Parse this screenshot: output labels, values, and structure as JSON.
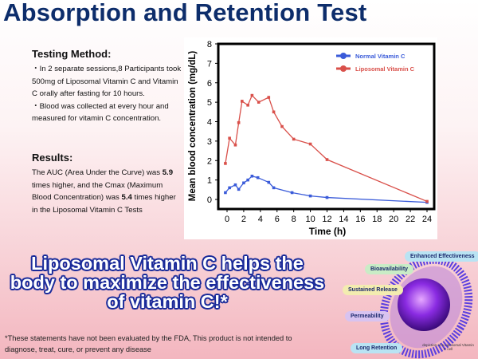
{
  "title": "Absorption and Retention Test",
  "method": {
    "heading": "Testing Method:",
    "lines": [
      "・In 2 separate sessions,8 Participants took 500mg of Liposomal Vitamin C and Vitamin C orally after fasting for 10 hours.",
      "・Blood was collected at every hour and measured for vitamin C concentration."
    ]
  },
  "results": {
    "heading": "Results:",
    "text_pre": "The AUC (Area Under the Curve) was ",
    "auc": "5.9",
    "text_mid": " times higher, and the Cmax (Maximum Blood Concentration) was ",
    "cmax": "5.4",
    "text_post": " times higher in the Liposomal Vitamin C Tests"
  },
  "slogan": "Liposomal Vitamin C helps the body to maximize the effectiveness of vitamin C!*",
  "disclaimer": "*These statements have not been evaluated by the FDA, This product is not intended to diagnose, treat, cure, or prevent any disease",
  "illustration": {
    "tags": [
      "Enhanced Effectiveness",
      "Bioavailability",
      "Sustained Release",
      "Permeability",
      "Long Retention"
    ],
    "caption": "depiction of a Liposomal Vitamin C cell"
  },
  "chart_data": {
    "type": "line",
    "title": "",
    "xlabel": "Time (h)",
    "ylabel": "Mean blood concentration (mg/dL)",
    "xlim": [
      -0.5,
      24.5
    ],
    "ylim": [
      -0.5,
      8
    ],
    "xticks": [
      0,
      2,
      4,
      6,
      8,
      10,
      12,
      14,
      16,
      18,
      20,
      22,
      24
    ],
    "yticks": [
      0,
      1,
      2,
      3,
      4,
      5,
      6,
      7,
      8
    ],
    "legend_position": "top-right",
    "series": [
      {
        "name": "Normal Vitamin C",
        "color": "#3a5bd9",
        "x": [
          -0.2,
          0.3,
          1,
          1.4,
          2,
          2.5,
          3,
          3.7,
          5,
          5.6,
          7.8,
          10,
          12,
          24
        ],
        "y": [
          0.35,
          0.6,
          0.75,
          0.52,
          0.85,
          1.0,
          1.2,
          1.12,
          0.88,
          0.6,
          0.35,
          0.18,
          0.1,
          -0.15
        ]
      },
      {
        "name": "Liposomal Vitamin C",
        "color": "#d9504a",
        "x": [
          -0.2,
          0.3,
          1,
          1.4,
          1.8,
          2.5,
          3,
          3.8,
          5,
          5.6,
          6.6,
          8,
          10,
          12,
          24
        ],
        "y": [
          1.85,
          3.15,
          2.8,
          3.95,
          5.05,
          4.85,
          5.35,
          5.0,
          5.25,
          4.5,
          3.75,
          3.1,
          2.85,
          2.05,
          -0.1
        ]
      }
    ]
  }
}
